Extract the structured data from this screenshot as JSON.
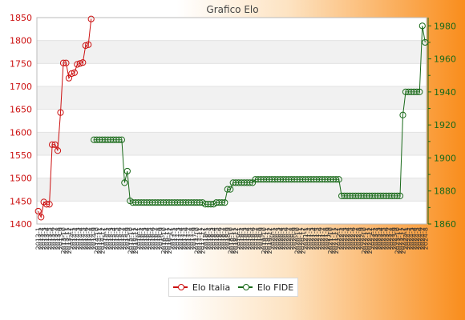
{
  "chart_data": {
    "type": "line",
    "title": "Grafico Elo",
    "y_left": {
      "ylim": [
        1400,
        1850
      ],
      "ticks": [
        1400,
        1450,
        1500,
        1550,
        1600,
        1650,
        1700,
        1750,
        1800,
        1850
      ],
      "color": "#cc1111"
    },
    "y_right": {
      "ylim": [
        1860,
        1985
      ],
      "ticks": [
        1860,
        1880,
        1900,
        1920,
        1940,
        1960,
        1980
      ],
      "color": "#1a6a1a"
    },
    "x_count": 140,
    "x_tick_labels": [
      "2013-1",
      "2013-2",
      "2013-3",
      "2013-4",
      "2013-5",
      "2013-6",
      "2013-7",
      "2013-8",
      "2013-9",
      "2013-10",
      "2013-11",
      "2013-12",
      "2014-1",
      "2014-2",
      "2014-3",
      "2014-4",
      "2014-5",
      "2014-6",
      "2014-7",
      "2014-8",
      "2014-9",
      "2014-10",
      "2014-11",
      "2014-12",
      "2015-1",
      "2015-2",
      "2015-3",
      "2015-4",
      "2015-5",
      "2015-6",
      "2015-7",
      "2015-8",
      "2015-9",
      "2015-10",
      "2015-11",
      "2015-12",
      "2016-1",
      "2016-2",
      "2016-3",
      "2016-4",
      "2016-5",
      "2016-6",
      "2016-7",
      "2016-8",
      "2016-9",
      "2016-10",
      "2016-11",
      "2016-12",
      "2017-1",
      "2017-2",
      "2017-3",
      "2017-4",
      "2017-5",
      "2017-6",
      "2017-7",
      "2017-8",
      "2017-9",
      "2017-10",
      "2017-11",
      "2017-12",
      "2018-1",
      "2018-2",
      "2018-3",
      "2018-4",
      "2018-5",
      "2018-6",
      "2018-7",
      "2018-8",
      "2018-9",
      "2018-10",
      "2018-11",
      "2018-12",
      "2019-1",
      "2019-2",
      "2019-3",
      "2019-4",
      "2019-5",
      "2019-6",
      "2019-7",
      "2019-8",
      "2019-9",
      "2019-10",
      "2019-11",
      "2019-12",
      "2020-1",
      "2020-2",
      "2020-3",
      "2020-4",
      "2020-5",
      "2020-6",
      "2020-7",
      "2020-8",
      "2020-9",
      "2020-10",
      "2020-11",
      "2020-12",
      "2021-1",
      "2021-2",
      "2021-3",
      "2021-4",
      "2021-5",
      "2021-6",
      "2021-7",
      "2021-8",
      "2021-9",
      "2021-10",
      "2021-11",
      "2021-12",
      "2022-1",
      "2022-2",
      "2022-3",
      "2022-4",
      "2022-5",
      "2022-6",
      "2022-7",
      "2022-8",
      "2022-9",
      "2022-10",
      "2022-11",
      "2022-12",
      "2023-1",
      "2023-2",
      "2023-3",
      "2023-4",
      "2023-5",
      "2023-6",
      "2023-7",
      "2023-8",
      "2023-9",
      "2023-10",
      "2023-11",
      "2023-12",
      "2024-1",
      "2024-2",
      "2024-3",
      "2024-4",
      "2024-5",
      "2024-6",
      "2024-7",
      "2024-8"
    ],
    "grid": true,
    "legend_position": "bottom",
    "series": [
      {
        "name": "Elo Italia",
        "axis": "left",
        "color": "#cc1111",
        "points": [
          [
            0,
            1428
          ],
          [
            1,
            1415
          ],
          [
            2,
            1448
          ],
          [
            3,
            1443
          ],
          [
            4,
            1443
          ],
          [
            5,
            1573
          ],
          [
            6,
            1573
          ],
          [
            7,
            1560
          ],
          [
            8,
            1643
          ],
          [
            9,
            1751
          ],
          [
            10,
            1751
          ],
          [
            11,
            1718
          ],
          [
            12,
            1728
          ],
          [
            13,
            1730
          ],
          [
            14,
            1748
          ],
          [
            15,
            1750
          ],
          [
            16,
            1752
          ],
          [
            17,
            1789
          ],
          [
            18,
            1791
          ],
          [
            19,
            1847
          ]
        ]
      },
      {
        "name": "Elo FIDE",
        "axis": "right",
        "color": "#1a6a1a",
        "points": [
          [
            20,
            1911
          ],
          [
            21,
            1911
          ],
          [
            22,
            1911
          ],
          [
            23,
            1911
          ],
          [
            24,
            1911
          ],
          [
            25,
            1911
          ],
          [
            26,
            1911
          ],
          [
            27,
            1911
          ],
          [
            28,
            1911
          ],
          [
            29,
            1911
          ],
          [
            30,
            1911
          ],
          [
            31,
            1885
          ],
          [
            32,
            1892
          ],
          [
            33,
            1874
          ],
          [
            34,
            1873
          ],
          [
            35,
            1873
          ],
          [
            36,
            1873
          ],
          [
            37,
            1873
          ],
          [
            38,
            1873
          ],
          [
            39,
            1873
          ],
          [
            40,
            1873
          ],
          [
            41,
            1873
          ],
          [
            42,
            1873
          ],
          [
            43,
            1873
          ],
          [
            44,
            1873
          ],
          [
            45,
            1873
          ],
          [
            46,
            1873
          ],
          [
            47,
            1873
          ],
          [
            48,
            1873
          ],
          [
            49,
            1873
          ],
          [
            50,
            1873
          ],
          [
            51,
            1873
          ],
          [
            52,
            1873
          ],
          [
            53,
            1873
          ],
          [
            54,
            1873
          ],
          [
            55,
            1873
          ],
          [
            56,
            1873
          ],
          [
            57,
            1873
          ],
          [
            58,
            1873
          ],
          [
            59,
            1873
          ],
          [
            60,
            1872
          ],
          [
            61,
            1872
          ],
          [
            62,
            1872
          ],
          [
            63,
            1872
          ],
          [
            64,
            1873
          ],
          [
            65,
            1873
          ],
          [
            66,
            1873
          ],
          [
            67,
            1873
          ],
          [
            68,
            1881
          ],
          [
            69,
            1881
          ],
          [
            70,
            1885
          ],
          [
            71,
            1885
          ],
          [
            72,
            1885
          ],
          [
            73,
            1885
          ],
          [
            74,
            1885
          ],
          [
            75,
            1885
          ],
          [
            76,
            1885
          ],
          [
            77,
            1885
          ],
          [
            78,
            1887
          ],
          [
            79,
            1887
          ],
          [
            80,
            1887
          ],
          [
            81,
            1887
          ],
          [
            82,
            1887
          ],
          [
            83,
            1887
          ],
          [
            84,
            1887
          ],
          [
            85,
            1887
          ],
          [
            86,
            1887
          ],
          [
            87,
            1887
          ],
          [
            88,
            1887
          ],
          [
            89,
            1887
          ],
          [
            90,
            1887
          ],
          [
            91,
            1887
          ],
          [
            92,
            1887
          ],
          [
            93,
            1887
          ],
          [
            94,
            1887
          ],
          [
            95,
            1887
          ],
          [
            96,
            1887
          ],
          [
            97,
            1887
          ],
          [
            98,
            1887
          ],
          [
            99,
            1887
          ],
          [
            100,
            1887
          ],
          [
            101,
            1887
          ],
          [
            102,
            1887
          ],
          [
            103,
            1887
          ],
          [
            104,
            1887
          ],
          [
            105,
            1887
          ],
          [
            106,
            1887
          ],
          [
            107,
            1887
          ],
          [
            108,
            1887
          ],
          [
            109,
            1877
          ],
          [
            110,
            1877
          ],
          [
            111,
            1877
          ],
          [
            112,
            1877
          ],
          [
            113,
            1877
          ],
          [
            114,
            1877
          ],
          [
            115,
            1877
          ],
          [
            116,
            1877
          ],
          [
            117,
            1877
          ],
          [
            118,
            1877
          ],
          [
            119,
            1877
          ],
          [
            120,
            1877
          ],
          [
            121,
            1877
          ],
          [
            122,
            1877
          ],
          [
            123,
            1877
          ],
          [
            124,
            1877
          ],
          [
            125,
            1877
          ],
          [
            126,
            1877
          ],
          [
            127,
            1877
          ],
          [
            128,
            1877
          ],
          [
            129,
            1877
          ],
          [
            130,
            1877
          ],
          [
            131,
            1926
          ],
          [
            132,
            1940
          ],
          [
            133,
            1940
          ],
          [
            134,
            1940
          ],
          [
            135,
            1940
          ],
          [
            136,
            1940
          ],
          [
            137,
            1940
          ],
          [
            138,
            1980
          ],
          [
            139,
            1970
          ]
        ]
      }
    ]
  }
}
